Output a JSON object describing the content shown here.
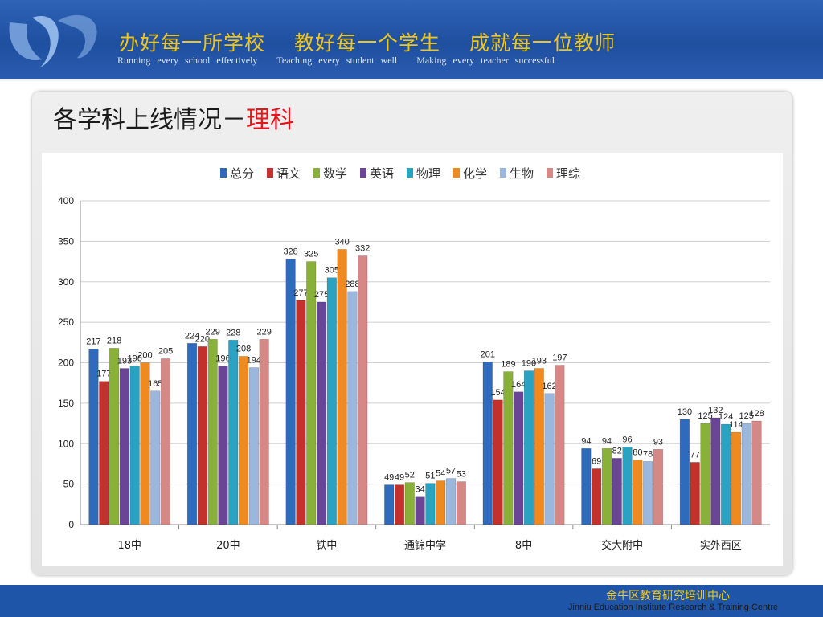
{
  "header": {
    "slogans_zh": [
      "办好每一所学校",
      "教好每一个学生",
      "成就每一位教师"
    ],
    "slogans_en": [
      "Running every school effectively",
      "Teaching every student well",
      "Making every teacher successful"
    ]
  },
  "title": {
    "prefix": "各学科上线情况－",
    "highlight": "理科"
  },
  "footer": {
    "name_zh": "金牛区教育研究培训中心",
    "name_en": "Jinniu Education Institute Research & Training Centre"
  },
  "colors": {
    "header_bg": "#1f4f9f",
    "slogan_zh": "#f0c419",
    "title_highlight": "#e8141a",
    "footer_text": "#f2c81c"
  },
  "chart_data": {
    "type": "bar",
    "categories": [
      "18中",
      "20中",
      "铁中",
      "通锦中学",
      "8中",
      "交大附中",
      "实外西区"
    ],
    "ylim": [
      0,
      400
    ],
    "yticks": [
      0,
      50,
      100,
      150,
      200,
      250,
      300,
      350,
      400
    ],
    "grid": true,
    "legend_position": "top",
    "series": [
      {
        "name": "总分",
        "color": "#2f6bbd",
        "values": [
          217,
          224,
          328,
          49,
          201,
          94,
          130
        ]
      },
      {
        "name": "语文",
        "color": "#c2312b",
        "values": [
          177,
          220,
          277,
          49,
          154,
          69,
          77
        ]
      },
      {
        "name": "数学",
        "color": "#89b13a",
        "values": [
          218,
          229,
          325,
          52,
          189,
          94,
          125
        ]
      },
      {
        "name": "英语",
        "color": "#6a4596",
        "values": [
          193,
          196,
          275,
          34,
          164,
          82,
          132
        ]
      },
      {
        "name": "物理",
        "color": "#2aa3c2",
        "values": [
          196,
          228,
          305,
          51,
          190,
          96,
          124
        ]
      },
      {
        "name": "化学",
        "color": "#ee8a1f",
        "values": [
          200,
          208,
          340,
          54,
          193,
          80,
          114
        ]
      },
      {
        "name": "生物",
        "color": "#9bb7de",
        "values": [
          165,
          194,
          288,
          57,
          162,
          78,
          125
        ]
      },
      {
        "name": "理综",
        "color": "#d68886",
        "values": [
          205,
          229,
          332,
          53,
          197,
          93,
          128
        ]
      }
    ]
  }
}
